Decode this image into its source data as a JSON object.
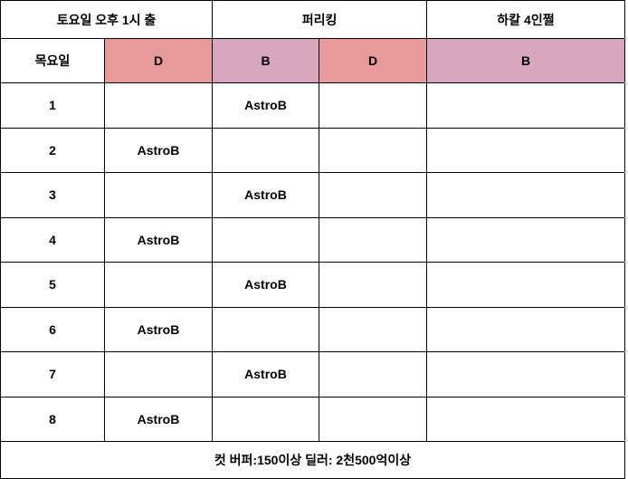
{
  "header": {
    "col1": "토요일 오후 1시 출",
    "col2": "퍼리킹",
    "col3": "하칼 4인쩔"
  },
  "subheader": {
    "day": "목요일",
    "cells": [
      "D",
      "B",
      "D",
      "B"
    ]
  },
  "colors": {
    "D": "#e8999a",
    "B": "#d5a6bd"
  },
  "rows": [
    {
      "n": "1",
      "c1": "",
      "c2": "AstroB"
    },
    {
      "n": "2",
      "c1": "AstroB",
      "c2": ""
    },
    {
      "n": "3",
      "c1": "",
      "c2": "AstroB"
    },
    {
      "n": "4",
      "c1": "AstroB",
      "c2": ""
    },
    {
      "n": "5",
      "c1": "",
      "c2": "AstroB"
    },
    {
      "n": "6",
      "c1": "AstroB",
      "c2": ""
    },
    {
      "n": "7",
      "c1": "",
      "c2": "AstroB"
    },
    {
      "n": "8",
      "c1": "AstroB",
      "c2": ""
    }
  ],
  "footer": "컷 버퍼:150이상 딜러: 2천500억이상"
}
